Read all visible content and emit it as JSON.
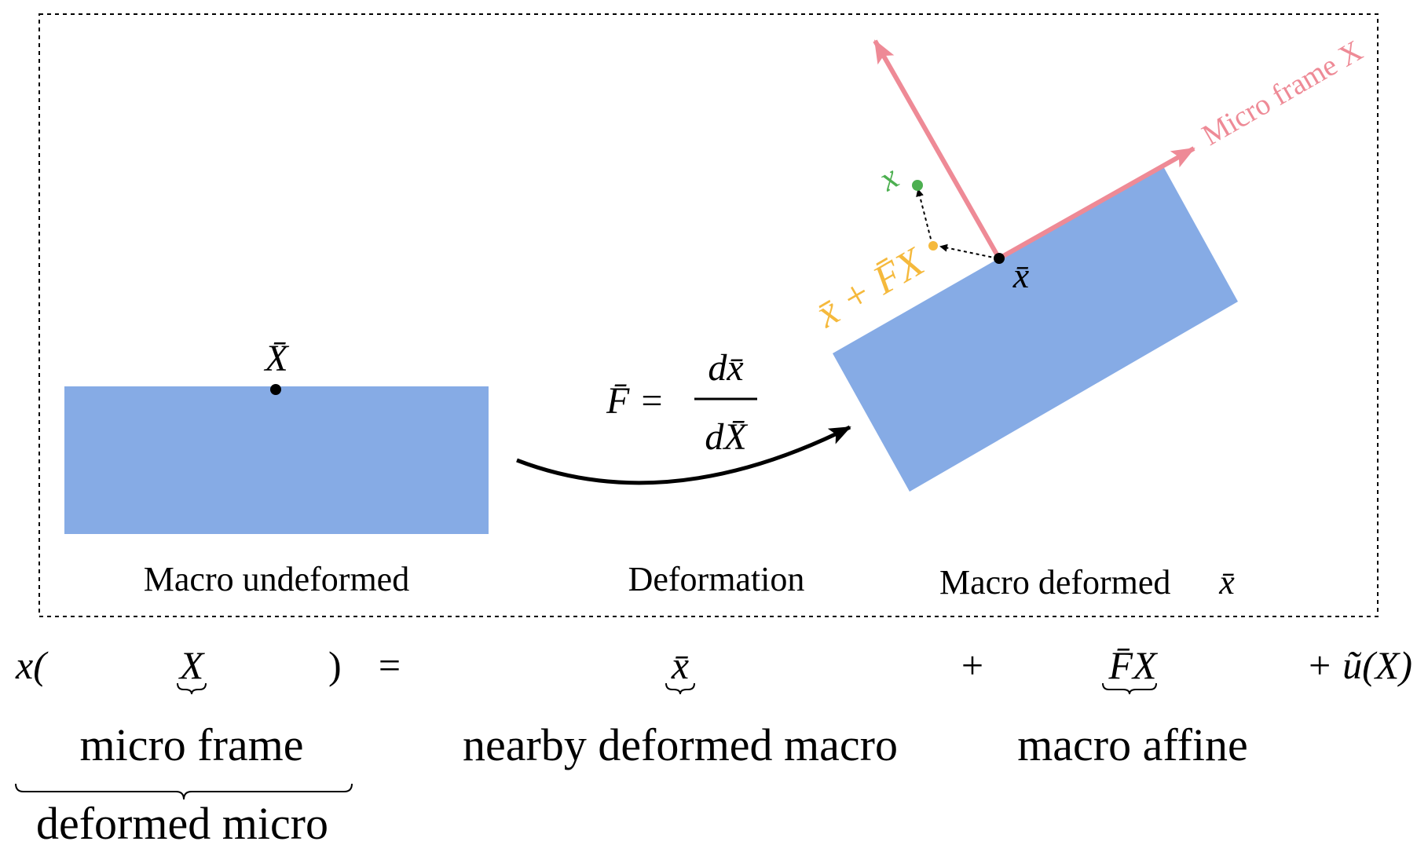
{
  "colors": {
    "block": "#86ABE5",
    "frame_arrow": "#EE8A96",
    "offset_point": "#F5B93C",
    "micro_point": "#4CAF50",
    "ink": "#000000"
  },
  "diagram": {
    "undeformed_caption": "Macro undeformed",
    "deformation_caption": "Deformation",
    "deformed_caption": "Macro deformed",
    "deformed_caption_symbol": "x̄",
    "point_X_bar": "X̄",
    "point_x_bar": "x̄",
    "point_x": "x",
    "offset_label": "x̄ + F̄X",
    "micro_frame_label": "Micro frame X",
    "gradient_lhs": "F̄ =",
    "gradient_num": "dx̄",
    "gradient_den": "dX̄"
  },
  "equation": {
    "lhs_x": "x(",
    "lhs_X": "X",
    "lhs_close": ")",
    "equals": "=",
    "term_xbar": "x̄",
    "plus1": "+",
    "term_FX": "F̄X",
    "term_u": "+ ũ(X)",
    "brace_micro_frame": "micro frame",
    "brace_nearby": "nearby deformed macro",
    "brace_affine": "macro affine",
    "brace_deformed_micro": "deformed micro"
  }
}
